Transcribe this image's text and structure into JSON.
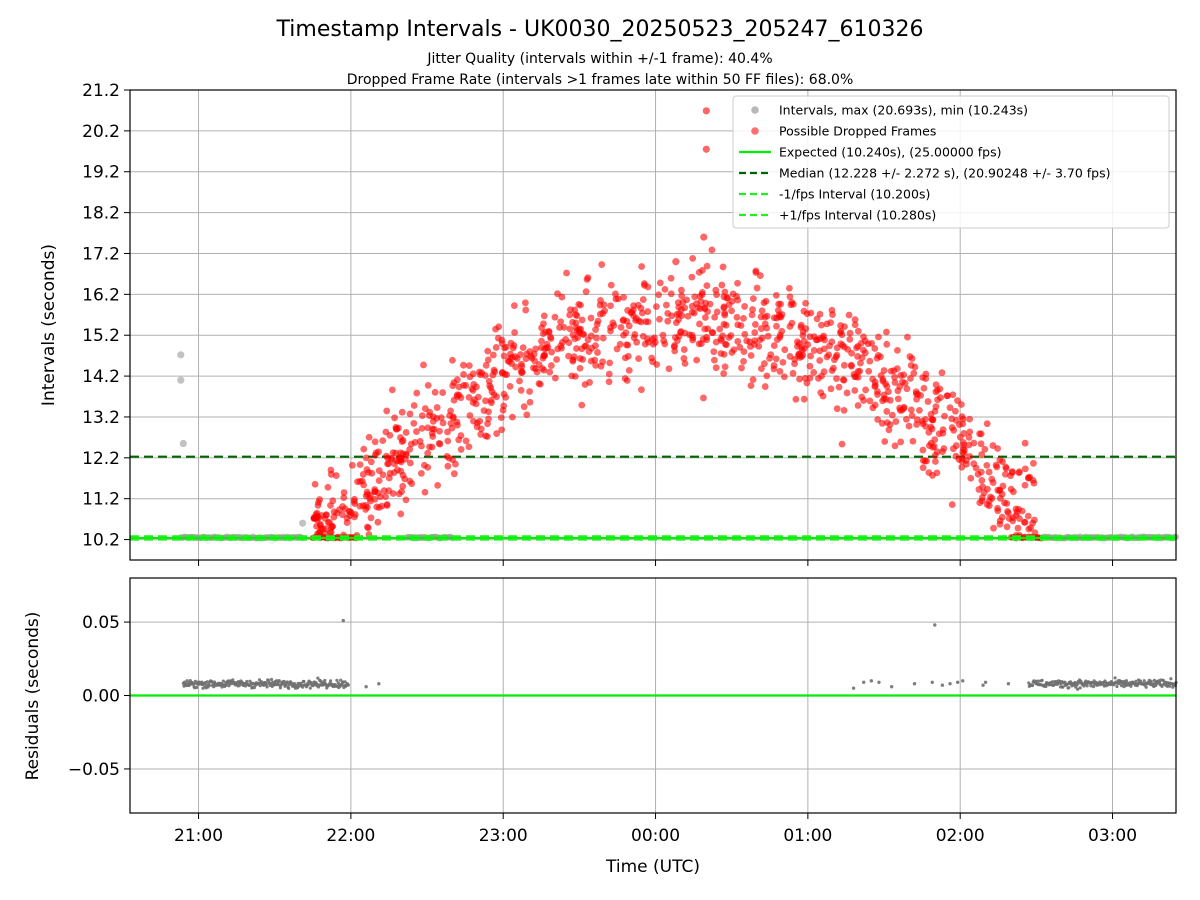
{
  "title": "Timestamp Intervals - UK0030_20250523_205247_610326",
  "subtitle_1": "Jitter Quality (intervals within +/-1 frame): 40.4%",
  "subtitle_2": "Dropped Frame Rate (intervals >1 frames late within 50 FF files): 68.0%",
  "colors": {
    "intervals": "#808080",
    "dropped": "#ff0000",
    "expected": "#00ee00",
    "median": "#006400",
    "residual_points": "#707070"
  },
  "legend": [
    {
      "label": "Intervals, max (20.693s), min (10.243s)",
      "marker": "circle",
      "color": "#a0a0a0"
    },
    {
      "label": "Possible Dropped Frames",
      "marker": "circle",
      "color": "#ff4040"
    },
    {
      "label": "Expected (10.240s), (25.00000 fps)",
      "marker": "line",
      "color": "#00ee00"
    },
    {
      "label": "Median (12.228 +/- 2.272 s), (20.90248 +/- 3.70 fps)",
      "marker": "dash",
      "color": "#006400"
    },
    {
      "label": "-1/fps Interval (10.200s)",
      "marker": "dash",
      "color": "#22ee22"
    },
    {
      "label": "+1/fps Interval (10.280s)",
      "marker": "dash",
      "color": "#22ee22"
    }
  ],
  "chart_data": [
    {
      "type": "scatter",
      "panel": "top",
      "ylabel": "Intervals (seconds)",
      "xlim": [
        "20:33",
        "03:25"
      ],
      "ylim": [
        9.7,
        21.2
      ],
      "ytick_labels": [
        "10.2",
        "11.2",
        "12.2",
        "13.2",
        "14.2",
        "15.2",
        "16.2",
        "17.2",
        "18.2",
        "19.2",
        "20.2",
        "21.2"
      ],
      "hlines": {
        "expected": 10.24,
        "median": 12.228,
        "minus_1fps": 10.2,
        "plus_1fps": 10.28
      },
      "series": [
        {
          "name": "Intervals, max (20.693s), min (10.243s)",
          "kind": "baseline_band",
          "x_ranges": [
            [
              "20:53",
              "21:41"
            ],
            [
              "22:22",
              "22:40"
            ],
            [
              "02:27",
              "03:25"
            ]
          ],
          "y": 10.25
        },
        {
          "name": "Intervals, max (20.693s), min (10.243s)",
          "kind": "points",
          "x": [
            "20:53",
            "20:53",
            "20:54",
            "21:41"
          ],
          "y": [
            14.72,
            14.1,
            12.55,
            10.6
          ]
        },
        {
          "name": "Possible Dropped Frames",
          "kind": "baseline_cluster",
          "x_ranges": [
            [
              "21:45",
              "22:02"
            ],
            [
              "02:20",
              "02:32"
            ]
          ],
          "y": 10.25
        },
        {
          "name": "Possible Dropped Frames",
          "kind": "arch_cloud",
          "x_range": [
            "21:45",
            "02:30"
          ],
          "y_center_peak": 15.6,
          "y_spread": 0.9
        },
        {
          "name": "Possible Dropped Frames",
          "kind": "outliers",
          "x": [
            "00:20",
            "00:20",
            "00:19",
            "00:08"
          ],
          "y": [
            20.69,
            19.75,
            17.6,
            17.0
          ]
        }
      ],
      "notes": "All grey intervals with red dropped-frame overlay; dense arch-shaped cloud of dropped-frame intervals between ~21:45 and ~02:30."
    },
    {
      "type": "scatter",
      "panel": "bottom",
      "xlabel": "Time (UTC)",
      "ylabel": "Residuals (seconds)",
      "xlim": [
        "20:33",
        "03:25"
      ],
      "ylim": [
        -0.08,
        0.08
      ],
      "ytick_labels": [
        "0.05",
        "0.00",
        "−0.05"
      ],
      "xtick_labels": [
        "21:00",
        "22:00",
        "23:00",
        "00:00",
        "01:00",
        "02:00",
        "03:00"
      ],
      "hlines": {
        "zero": 0.0
      },
      "series": [
        {
          "name": "Residuals",
          "kind": "band",
          "x_ranges": [
            [
              "20:54",
              "21:59"
            ],
            [
              "02:27",
              "03:25"
            ]
          ],
          "y_center": 0.008,
          "y_spread": 0.003
        },
        {
          "name": "Residuals",
          "kind": "points",
          "x": [
            "21:57",
            "22:06",
            "22:11",
            "01:18",
            "01:22",
            "01:25",
            "01:28",
            "01:33",
            "01:42",
            "01:49",
            "01:53",
            "01:56",
            "01:59",
            "02:01",
            "02:09",
            "02:10",
            "02:19",
            "01:50"
          ],
          "y": [
            0.051,
            0.006,
            0.008,
            0.005,
            0.009,
            0.01,
            0.009,
            0.006,
            0.008,
            0.009,
            0.007,
            0.008,
            0.009,
            0.01,
            0.007,
            0.009,
            0.008,
            0.048
          ]
        }
      ]
    }
  ],
  "xlabel": "Time (UTC)"
}
